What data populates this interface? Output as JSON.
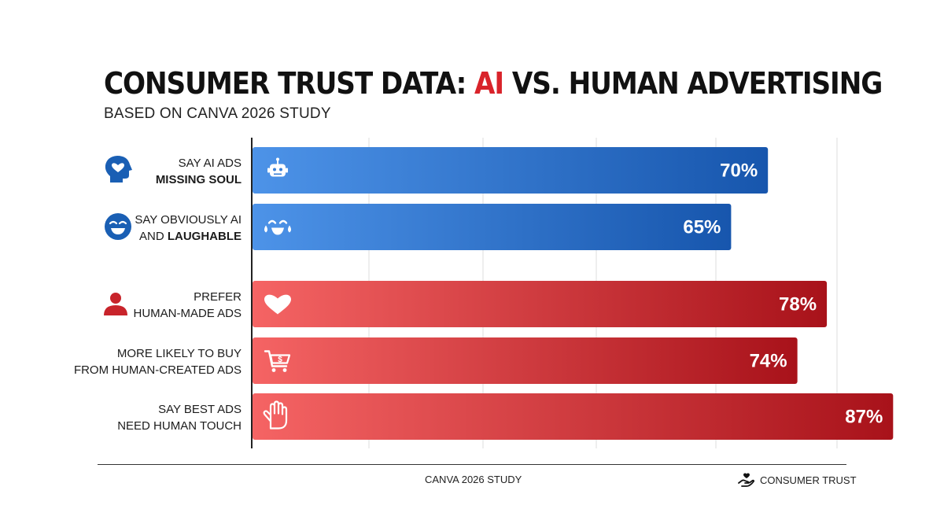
{
  "title": {
    "before": "CONSUMER TRUST DATA: ",
    "accent": "AI",
    "after": " VS. HUMAN ADVERTISING"
  },
  "subtitle": "BASED ON CANVA 2026 STUDY",
  "colors": {
    "title_accent": "#d9232a",
    "ai_bar_light": "#4d93e8",
    "ai_bar_dark": "#1756ad",
    "human_bar_light": "#f56464",
    "human_bar_dark": "#a8121a",
    "ai_icon": "#1a5fb4",
    "human_icon": "#c8242b"
  },
  "chart_data": {
    "type": "bar",
    "orientation": "horizontal",
    "xlim": [
      0,
      100
    ],
    "grid": true,
    "bars": [
      {
        "group": "ai",
        "label_lines": [
          "SAY AI ADS",
          "MISSING SOUL"
        ],
        "bold_line": 1,
        "value": 70,
        "value_label": "70%",
        "left_icon": "head-heart-icon",
        "bar_icon": "robot-icon"
      },
      {
        "group": "ai",
        "label_lines": [
          "SAY OBVIOUSLY AI",
          "AND LAUGHABLE"
        ],
        "bold_words": "LAUGHABLE",
        "value": 65,
        "value_label": "65%",
        "left_icon": "laughing-face-icon",
        "bar_icon": "tears-of-joy-icon"
      },
      {
        "group": "human",
        "label_lines": [
          "PREFER",
          "HUMAN-MADE ADS"
        ],
        "value": 78,
        "value_label": "78%",
        "left_icon": "person-icon",
        "bar_icon": "heart-icon"
      },
      {
        "group": "human",
        "label_lines": [
          "MORE LIKELY TO BUY",
          "FROM HUMAN-CREATED ADS"
        ],
        "value": 74,
        "value_label": "74%",
        "left_icon": "",
        "bar_icon": "shopping-cart-icon"
      },
      {
        "group": "human",
        "label_lines": [
          "SAY BEST ADS",
          "NEED HUMAN TOUCH"
        ],
        "value": 87,
        "value_label": "87%",
        "left_icon": "",
        "bar_icon": "hand-icon"
      }
    ]
  },
  "footer": {
    "source": "CANVA 2026 STUDY",
    "brand": "CONSUMER TRUST",
    "brand_icon": "hand-heart-icon"
  }
}
